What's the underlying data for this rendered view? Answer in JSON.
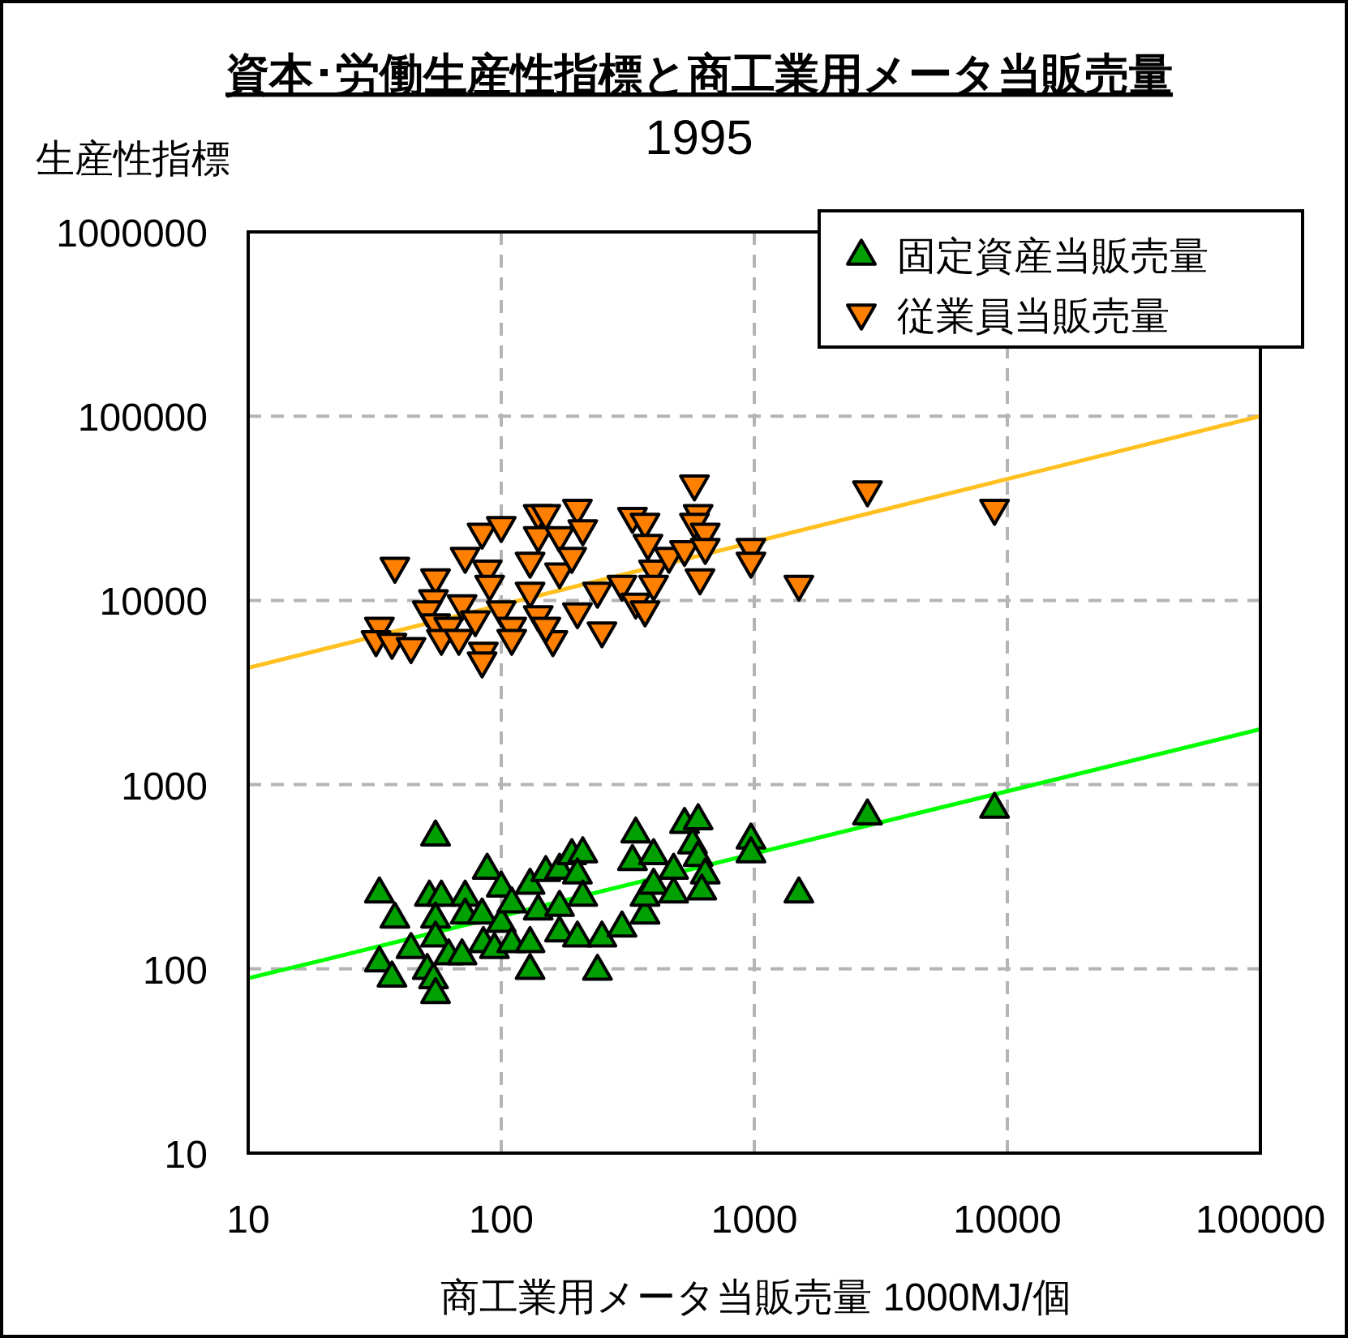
{
  "chart_data": {
    "type": "scatter",
    "title": "資本･労働生産性指標と商工業用メータ当販売量",
    "subtitle": "1995",
    "xlabel": "商工業用メータ当販売量 1000MJ/個",
    "ylabel": "生産性指標",
    "log": "xy",
    "xlim": [
      10,
      100000
    ],
    "ylim": [
      10,
      1000000
    ],
    "xticks": [
      10,
      100,
      1000,
      10000,
      100000
    ],
    "yticks": [
      10,
      100,
      1000,
      10000,
      100000,
      1000000
    ],
    "grid": true,
    "legend": "top right",
    "series": [
      {
        "name": "固定資産当販売量",
        "type": "scatter",
        "marker": "triangle",
        "color": "#00a000",
        "x": [
          55,
          33,
          38,
          44,
          33,
          37,
          52,
          58,
          55,
          55,
          51,
          54,
          55,
          62,
          70,
          72,
          72,
          84,
          88,
          85,
          94,
          100,
          100,
          110,
          110,
          130,
          130,
          130,
          150,
          170,
          140,
          170,
          170,
          200,
          190,
          210,
          200,
          210,
          250,
          240,
          300,
          340,
          330,
          370,
          370,
          400,
          400,
          480,
          480,
          530,
          600,
          570,
          600,
          640,
          620,
          970,
          970,
          1500,
          2800,
          8900
        ],
        "values": [
          530,
          260,
          190,
          130,
          110,
          91,
          250,
          250,
          190,
          150,
          100,
          89,
          74,
          120,
          120,
          250,
          200,
          200,
          350,
          140,
          130,
          280,
          180,
          230,
          140,
          290,
          140,
          100,
          340,
          350,
          210,
          220,
          160,
          150,
          420,
          430,
          330,
          250,
          150,
          99,
          170,
          550,
          390,
          200,
          250,
          420,
          290,
          350,
          260,
          620,
          650,
          480,
          410,
          330,
          270,
          510,
          430,
          260,
          690,
          750
        ]
      },
      {
        "name": "従業員当販売量",
        "type": "scatter",
        "marker": "triangle_down",
        "color": "#ff8000",
        "x": [
          38,
          33,
          32,
          37,
          44,
          55,
          54,
          51,
          55,
          62,
          58,
          68,
          72,
          84,
          100,
          70,
          88,
          90,
          79,
          85,
          84,
          100,
          110,
          110,
          130,
          130,
          140,
          140,
          150,
          140,
          170,
          170,
          160,
          150,
          200,
          210,
          190,
          200,
          240,
          250,
          300,
          340,
          370,
          330,
          370,
          380,
          400,
          400,
          460,
          530,
          580,
          600,
          580,
          640,
          640,
          610,
          970,
          970,
          1500,
          2800,
          8900
        ],
        "values": [
          15000,
          7100,
          6000,
          5800,
          5500,
          13000,
          10000,
          8700,
          7400,
          7100,
          6100,
          6100,
          17000,
          23000,
          25000,
          9400,
          14500,
          12000,
          7700,
          5200,
          4600,
          8700,
          7100,
          6100,
          16000,
          11000,
          8200,
          29000,
          29000,
          22000,
          22000,
          14000,
          6000,
          7100,
          31000,
          24000,
          17000,
          8500,
          11000,
          6700,
          12000,
          9600,
          8700,
          28000,
          26000,
          20000,
          14500,
          12000,
          17000,
          18500,
          42000,
          29000,
          26000,
          23000,
          19000,
          13000,
          19000,
          16000,
          12000,
          39000,
          31000
        ]
      },
      {
        "type": "line",
        "marker": "none",
        "line_style": "solid",
        "color": "#00ff00",
        "x": [
          10,
          20,
          5000,
          100000
        ],
        "values": [
          89,
          112,
          729,
          2000
        ]
      },
      {
        "type": "line",
        "marker": "none",
        "line_style": "solid",
        "color": "#ffc020",
        "x": [
          10,
          20,
          5000,
          100000
        ],
        "values": [
          4300,
          5450,
          36000,
          100000
        ]
      }
    ]
  }
}
